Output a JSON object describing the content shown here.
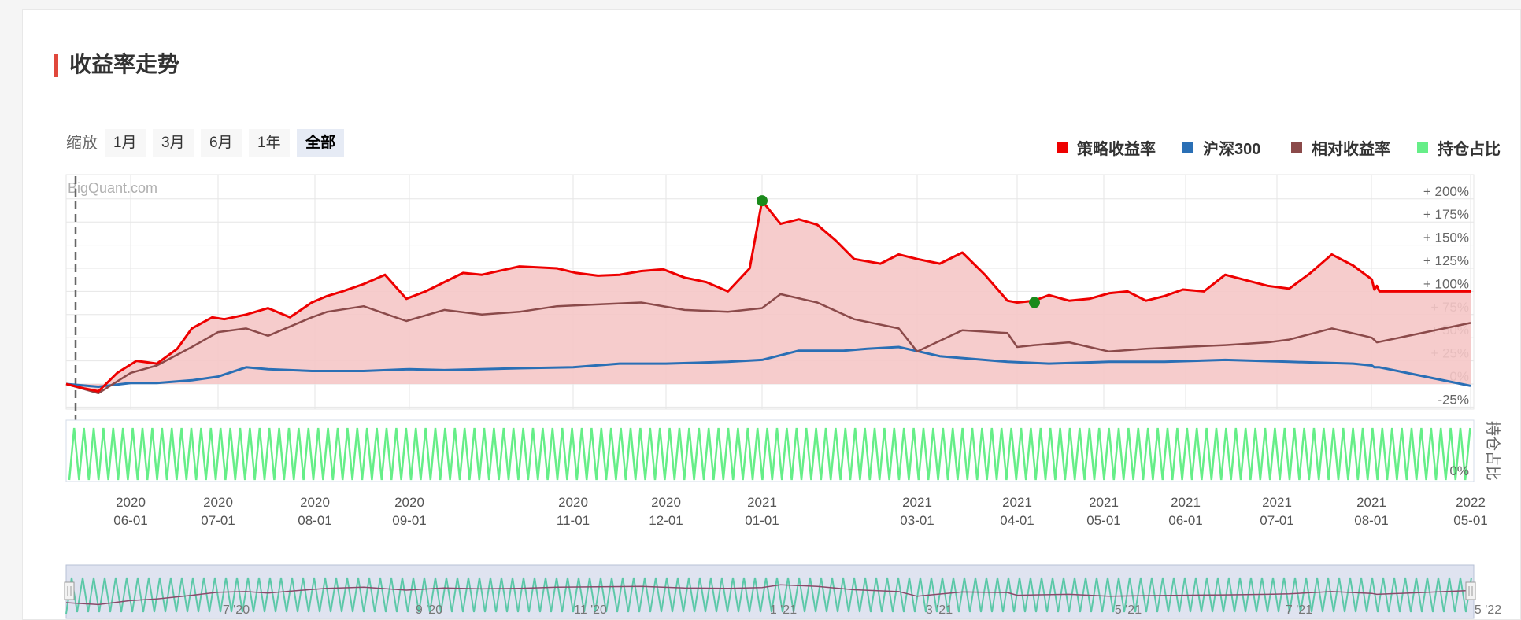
{
  "title": "收益率走势",
  "zoom": {
    "label": "缩放",
    "buttons": [
      "1月",
      "3月",
      "6月",
      "1年",
      "全部"
    ],
    "active": "全部"
  },
  "watermark": "BigQuant.com",
  "colors": {
    "strategy": "#ee0000",
    "benchmark": "#2a6fb5",
    "relative": "#8b4a4a",
    "position": "#66ee88",
    "fill": "#f5c6c6",
    "accent": "#e0483c",
    "marker": "#1b8a1b"
  },
  "chart_data": {
    "type": "line",
    "legend_position": "top-right",
    "grid": true,
    "series": [
      {
        "name": "策略收益率",
        "color": "#ee0000",
        "fill": true,
        "x": [
          "2020-05-08",
          "2020-05-15",
          "2020-05-20",
          "2020-05-27",
          "2020-06-03",
          "2020-06-10",
          "2020-06-17",
          "2020-06-22",
          "2020-06-29",
          "2020-07-03",
          "2020-07-10",
          "2020-07-17",
          "2020-07-24",
          "2020-07-31",
          "2020-08-05",
          "2020-08-10",
          "2020-08-17",
          "2020-08-24",
          "2020-08-31",
          "2020-09-07",
          "2020-09-14",
          "2020-09-21",
          "2020-09-28",
          "2020-10-12",
          "2020-10-26",
          "2020-11-02",
          "2020-11-09",
          "2020-11-16",
          "2020-11-23",
          "2020-11-30",
          "2020-12-07",
          "2020-12-14",
          "2020-12-21",
          "2020-12-28",
          "2021-01-01",
          "2021-01-08",
          "2021-01-15",
          "2021-01-22",
          "2021-01-29",
          "2021-02-05",
          "2021-02-15",
          "2021-02-22",
          "2021-03-01",
          "2021-03-08",
          "2021-03-15",
          "2021-03-22",
          "2021-03-29",
          "2021-04-01",
          "2021-04-07",
          "2021-04-12",
          "2021-04-19",
          "2021-04-26",
          "2021-05-03",
          "2021-05-10",
          "2021-05-17",
          "2021-05-24",
          "2021-05-31",
          "2021-06-07",
          "2021-06-14",
          "2021-06-21",
          "2021-06-28",
          "2021-07-05",
          "2021-07-12",
          "2021-07-19",
          "2021-07-26",
          "2021-08-02",
          "2021-08-09",
          "2021-08-16",
          "2021-08-23",
          "2022-05-01"
        ],
        "y": [
          0,
          -5,
          -8,
          12,
          25,
          22,
          38,
          60,
          72,
          70,
          75,
          82,
          72,
          88,
          95,
          100,
          108,
          118,
          92,
          100,
          110,
          120,
          118,
          127,
          125,
          120,
          117,
          118,
          122,
          124,
          115,
          110,
          100,
          125,
          198,
          173,
          178,
          172,
          155,
          135,
          130,
          140,
          135,
          130,
          142,
          118,
          90,
          88,
          90,
          96,
          90,
          92,
          98,
          100,
          90,
          95,
          102,
          100,
          118,
          112,
          106,
          103,
          120,
          140,
          128,
          113,
          102,
          106,
          100,
          100
        ]
      },
      {
        "name": "沪深300",
        "color": "#2a6fb5",
        "fill": false,
        "x": [
          "2020-05-08",
          "2020-05-20",
          "2020-06-01",
          "2020-06-10",
          "2020-06-22",
          "2020-07-01",
          "2020-07-10",
          "2020-07-17",
          "2020-07-31",
          "2020-08-17",
          "2020-09-01",
          "2020-09-14",
          "2020-10-12",
          "2020-11-01",
          "2020-11-16",
          "2020-12-01",
          "2020-12-21",
          "2021-01-01",
          "2021-01-15",
          "2021-02-01",
          "2021-02-10",
          "2021-02-22",
          "2021-03-08",
          "2021-03-29",
          "2021-04-12",
          "2021-05-03",
          "2021-05-24",
          "2021-06-14",
          "2021-07-05",
          "2021-07-26",
          "2021-08-02",
          "2021-08-09",
          "2021-08-23",
          "2022-05-01"
        ],
        "y": [
          0,
          -3,
          1,
          1,
          4,
          8,
          18,
          16,
          14,
          14,
          16,
          15,
          17,
          18,
          22,
          22,
          24,
          26,
          36,
          36,
          38,
          40,
          30,
          24,
          22,
          24,
          24,
          26,
          24,
          22,
          20,
          18,
          18,
          -2
        ]
      },
      {
        "name": "相对收益率",
        "color": "#8b4a4a",
        "fill": false,
        "x": [
          "2020-05-08",
          "2020-05-20",
          "2020-06-01",
          "2020-06-10",
          "2020-06-22",
          "2020-07-01",
          "2020-07-10",
          "2020-07-17",
          "2020-07-31",
          "2020-08-05",
          "2020-08-17",
          "2020-08-31",
          "2020-09-14",
          "2020-09-28",
          "2020-10-12",
          "2020-10-26",
          "2020-11-09",
          "2020-11-23",
          "2020-12-07",
          "2020-12-21",
          "2021-01-01",
          "2021-01-08",
          "2021-01-22",
          "2021-02-05",
          "2021-02-22",
          "2021-03-01",
          "2021-03-15",
          "2021-03-29",
          "2021-04-01",
          "2021-04-07",
          "2021-04-19",
          "2021-05-03",
          "2021-05-17",
          "2021-05-31",
          "2021-06-14",
          "2021-06-28",
          "2021-07-05",
          "2021-07-19",
          "2021-08-02",
          "2021-08-16",
          "2022-05-01"
        ],
        "y": [
          0,
          -10,
          12,
          20,
          40,
          56,
          60,
          52,
          72,
          78,
          84,
          68,
          80,
          75,
          78,
          84,
          86,
          88,
          80,
          78,
          82,
          97,
          88,
          70,
          60,
          35,
          58,
          55,
          40,
          42,
          45,
          35,
          38,
          40,
          42,
          45,
          48,
          60,
          50,
          45,
          66
        ]
      },
      {
        "name": "持仓占比",
        "color": "#66ee88",
        "fill": false,
        "oscillating": true,
        "min": 0,
        "max": 1,
        "y_axis_title": "持仓占比"
      }
    ],
    "markers": [
      {
        "x": "2021-01-01",
        "y": 198,
        "color": "#1b8a1b"
      },
      {
        "x": "2021-04-07",
        "y": 88,
        "color": "#1b8a1b"
      }
    ],
    "y_axis": {
      "ticks": [
        "+ 200%",
        "+ 175%",
        "+ 150%",
        "+ 125%",
        "+ 100%",
        "+ 75%",
        "+ 50%",
        "+ 25%",
        "0%",
        "-25%"
      ],
      "values": [
        200,
        175,
        150,
        125,
        100,
        75,
        50,
        25,
        0,
        -25
      ],
      "range": [
        -25,
        215
      ]
    },
    "y2_axis": {
      "ticks": [
        "0%"
      ],
      "title": "持仓占比"
    },
    "x_ticks": [
      {
        "line1": "2020",
        "line2": "06-01",
        "date": "2020-06-01"
      },
      {
        "line1": "2020",
        "line2": "07-01",
        "date": "2020-07-01"
      },
      {
        "line1": "2020",
        "line2": "08-01",
        "date": "2020-08-01"
      },
      {
        "line1": "2020",
        "line2": "09-01",
        "date": "2020-09-01"
      },
      {
        "line1": "2020",
        "line2": "11-01",
        "date": "2020-11-01"
      },
      {
        "line1": "2020",
        "line2": "12-01",
        "date": "2020-12-01"
      },
      {
        "line1": "2021",
        "line2": "01-01",
        "date": "2021-01-01"
      },
      {
        "line1": "2021",
        "line2": "03-01",
        "date": "2021-03-01"
      },
      {
        "line1": "2021",
        "line2": "04-01",
        "date": "2021-04-01"
      },
      {
        "line1": "2021",
        "line2": "05-01",
        "date": "2021-05-01"
      },
      {
        "line1": "2021",
        "line2": "06-01",
        "date": "2021-06-01"
      },
      {
        "line1": "2021",
        "line2": "07-01",
        "date": "2021-07-01"
      },
      {
        "line1": "2021",
        "line2": "08-01",
        "date": "2021-08-01"
      },
      {
        "line1": "2022",
        "line2": "05-01",
        "date": "2022-05-01"
      }
    ],
    "navigator_ticks": [
      "7 '20",
      "9 '20",
      "11 '20",
      "1 '21",
      "3 '21",
      "5 '21",
      "7 '21",
      "5 '22"
    ]
  }
}
